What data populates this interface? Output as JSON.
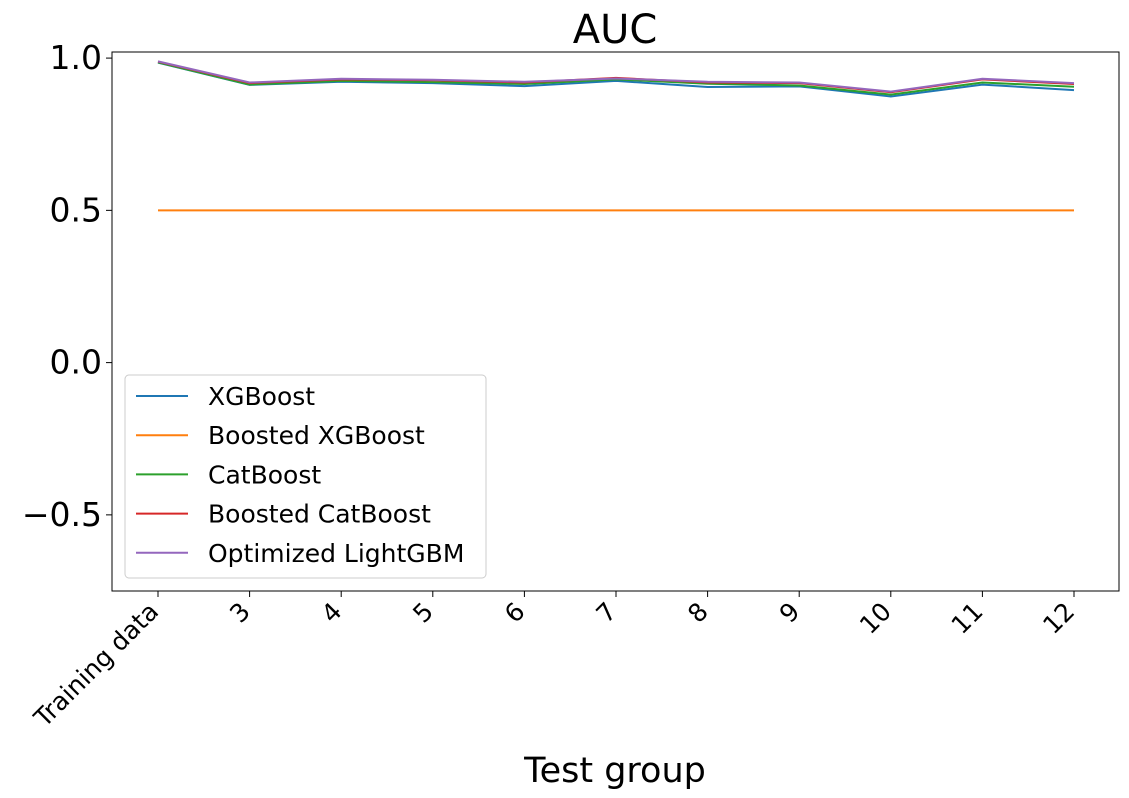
{
  "chart_data": {
    "type": "line",
    "title": "AUC",
    "xlabel": "Test group",
    "ylabel": "",
    "categories": [
      "Training data",
      "3",
      "4",
      "5",
      "6",
      "7",
      "8",
      "9",
      "10",
      "11",
      "12"
    ],
    "ylim": [
      -0.75,
      1.02
    ],
    "yticks": [
      -0.5,
      0.0,
      0.5,
      1.0
    ],
    "ytick_labels": [
      "−0.5",
      "0.0",
      "0.5",
      "1.0"
    ],
    "grid": false,
    "legend_position": "lower-left",
    "series": [
      {
        "name": "XGBoost",
        "color": "#1f77b4",
        "values": [
          0.985,
          0.912,
          0.922,
          0.918,
          0.908,
          0.925,
          0.905,
          0.907,
          0.874,
          0.913,
          0.895
        ]
      },
      {
        "name": "Boosted XGBoost",
        "color": "#ff7f0e",
        "values": [
          0.5,
          0.5,
          0.5,
          0.5,
          0.5,
          0.5,
          0.5,
          0.5,
          0.5,
          0.5,
          0.5
        ]
      },
      {
        "name": "CatBoost",
        "color": "#2ca02c",
        "values": [
          0.986,
          0.913,
          0.925,
          0.921,
          0.915,
          0.93,
          0.916,
          0.91,
          0.88,
          0.92,
          0.906
        ]
      },
      {
        "name": "Boosted CatBoost",
        "color": "#d62728",
        "values": [
          0.988,
          0.918,
          0.93,
          0.927,
          0.92,
          0.935,
          0.92,
          0.918,
          0.888,
          0.93,
          0.915
        ]
      },
      {
        "name": "Optimized LightGBM",
        "color": "#9467bd",
        "values": [
          0.989,
          0.92,
          0.932,
          0.929,
          0.922,
          0.933,
          0.922,
          0.92,
          0.89,
          0.932,
          0.918
        ]
      }
    ]
  }
}
